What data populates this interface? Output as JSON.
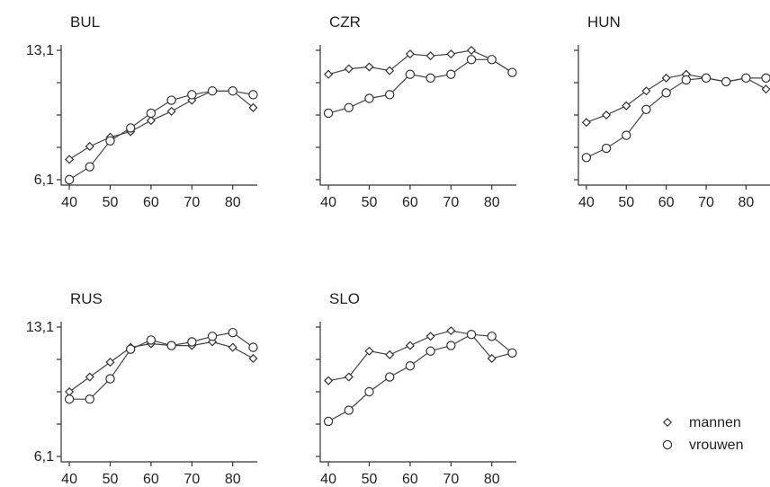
{
  "legend": {
    "items": [
      {
        "label": "mannen",
        "marker": "diamond"
      },
      {
        "label": "vrouwen",
        "marker": "circle"
      }
    ]
  },
  "chart_data": [
    {
      "type": "line",
      "title": "BUL",
      "x": [
        40,
        45,
        50,
        55,
        60,
        65,
        70,
        75,
        80,
        85
      ],
      "xticks": [
        40,
        50,
        60,
        70,
        80
      ],
      "ylim": [
        6.1,
        13.1
      ],
      "yticks": [
        6.1,
        13.1
      ],
      "ytick_labels": [
        "6,1",
        "13,1"
      ],
      "series": [
        {
          "name": "mannen",
          "marker": "diamond",
          "values": [
            7.2,
            7.9,
            8.4,
            8.7,
            9.3,
            9.8,
            10.4,
            10.9,
            10.9,
            10.0
          ]
        },
        {
          "name": "vrouwen",
          "marker": "circle",
          "values": [
            6.1,
            6.8,
            8.2,
            8.9,
            9.7,
            10.4,
            10.7,
            10.9,
            10.9,
            10.7
          ]
        }
      ]
    },
    {
      "type": "line",
      "title": "CZR",
      "x": [
        40,
        45,
        50,
        55,
        60,
        65,
        70,
        75,
        80,
        85
      ],
      "xticks": [
        40,
        50,
        60,
        70,
        80
      ],
      "ylim": [
        6.1,
        13.1
      ],
      "yticks": [
        6.1,
        13.1
      ],
      "ytick_labels": [
        "",
        ""
      ],
      "series": [
        {
          "name": "mannen",
          "marker": "diamond",
          "values": [
            11.8,
            12.1,
            12.2,
            12.0,
            12.9,
            12.8,
            12.9,
            13.1,
            12.6,
            11.9
          ]
        },
        {
          "name": "vrouwen",
          "marker": "circle",
          "values": [
            9.7,
            10.0,
            10.5,
            10.7,
            11.8,
            11.6,
            11.8,
            12.6,
            12.6,
            11.9
          ]
        }
      ]
    },
    {
      "type": "line",
      "title": "HUN",
      "x": [
        40,
        45,
        50,
        55,
        60,
        65,
        70,
        75,
        80,
        85
      ],
      "xticks": [
        40,
        50,
        60,
        70,
        80
      ],
      "ylim": [
        6.1,
        13.1
      ],
      "yticks": [
        6.1,
        13.1
      ],
      "ytick_labels": [
        "",
        ""
      ],
      "series": [
        {
          "name": "mannen",
          "marker": "diamond",
          "values": [
            9.2,
            9.6,
            10.1,
            10.9,
            11.6,
            11.8,
            11.6,
            11.4,
            11.6,
            11.0
          ]
        },
        {
          "name": "vrouwen",
          "marker": "circle",
          "values": [
            7.3,
            7.8,
            8.5,
            9.9,
            10.8,
            11.5,
            11.6,
            11.4,
            11.6,
            11.6
          ]
        }
      ]
    },
    {
      "type": "line",
      "title": "RUS",
      "x": [
        40,
        45,
        50,
        55,
        60,
        65,
        70,
        75,
        80,
        85
      ],
      "xticks": [
        40,
        50,
        60,
        70,
        80
      ],
      "ylim": [
        6.1,
        13.1
      ],
      "yticks": [
        6.1,
        13.1
      ],
      "ytick_labels": [
        "6,1",
        "13,1"
      ],
      "series": [
        {
          "name": "mannen",
          "marker": "diamond",
          "values": [
            9.6,
            10.4,
            11.2,
            12.0,
            12.2,
            12.1,
            12.1,
            12.3,
            12.0,
            11.4
          ]
        },
        {
          "name": "vrouwen",
          "marker": "circle",
          "values": [
            9.2,
            9.2,
            10.3,
            11.9,
            12.4,
            12.1,
            12.3,
            12.6,
            12.8,
            12.0
          ]
        }
      ]
    },
    {
      "type": "line",
      "title": "SLO",
      "x": [
        40,
        45,
        50,
        55,
        60,
        65,
        70,
        75,
        80,
        85
      ],
      "xticks": [
        40,
        50,
        60,
        70,
        80
      ],
      "ylim": [
        6.1,
        13.1
      ],
      "yticks": [
        6.1,
        13.1
      ],
      "ytick_labels": [
        "",
        ""
      ],
      "series": [
        {
          "name": "mannen",
          "marker": "diamond",
          "values": [
            10.2,
            10.4,
            11.8,
            11.6,
            12.1,
            12.6,
            12.9,
            12.7,
            11.4,
            11.7
          ]
        },
        {
          "name": "vrouwen",
          "marker": "circle",
          "values": [
            8.0,
            8.6,
            9.6,
            10.4,
            11.0,
            11.8,
            12.1,
            12.7,
            12.6,
            11.7
          ]
        }
      ]
    }
  ]
}
